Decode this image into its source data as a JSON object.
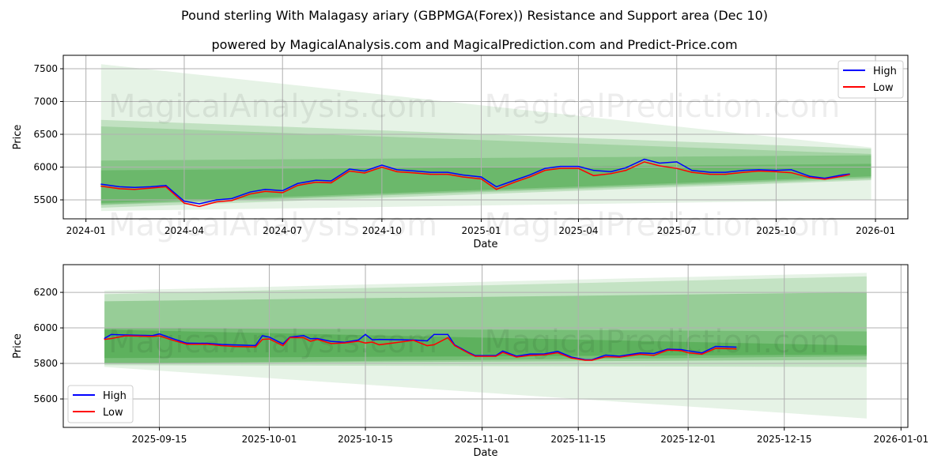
{
  "title": "Pound sterling With Malagasy ariary (GBPMGA(Forex)) Resistance and Support area (Dec 10)",
  "subtitle": "powered by MagicalAnalysis.com and MagicalPrediction.com and Predict-Price.com",
  "watermarks": [
    "MagicalAnalysis.com",
    "MagicalPrediction.com"
  ],
  "colors": {
    "high": "#0000ff",
    "low": "#ff0000",
    "band": "#2e9a2e"
  },
  "chart_data": [
    {
      "type": "line",
      "xlabel": "Date",
      "ylabel": "Price",
      "xlim": [
        "2023-12-11",
        "2026-01-31"
      ],
      "ylim": [
        5211,
        7705
      ],
      "grid": true,
      "legend": "top-right",
      "legend_entries": [
        "High",
        "Low"
      ],
      "xticks": [
        {
          "d": "2024-01-01",
          "label": "2024-01"
        },
        {
          "d": "2024-04-01",
          "label": "2024-04"
        },
        {
          "d": "2024-07-01",
          "label": "2024-07"
        },
        {
          "d": "2024-10-01",
          "label": "2024-10"
        },
        {
          "d": "2025-01-01",
          "label": "2025-01"
        },
        {
          "d": "2025-04-01",
          "label": "2025-04"
        },
        {
          "d": "2025-07-01",
          "label": "2025-07"
        },
        {
          "d": "2025-10-01",
          "label": "2025-10"
        },
        {
          "d": "2026-01-01",
          "label": "2026-01"
        }
      ],
      "yticks": [
        {
          "v": 5500,
          "label": "5500"
        },
        {
          "v": 6000,
          "label": "6000"
        },
        {
          "v": 6500,
          "label": "6500"
        },
        {
          "v": 7000,
          "label": "7000"
        },
        {
          "v": 7500,
          "label": "7500"
        }
      ],
      "bands": {
        "start": "2024-01-15",
        "end": "2025-12-28",
        "items": [
          {
            "s": [
              5330,
              7570
            ],
            "e": [
              5500,
              6300
            ],
            "o": 0.12
          },
          {
            "s": [
              5380,
              6720
            ],
            "e": [
              5800,
              6280
            ],
            "o": 0.2
          },
          {
            "s": [
              5420,
              6620
            ],
            "e": [
              5820,
              6200
            ],
            "o": 0.2
          },
          {
            "s": [
              5430,
              6100
            ],
            "e": [
              5840,
              6180
            ],
            "o": 0.25
          },
          {
            "s": [
              5450,
              5950
            ],
            "e": [
              5860,
              6050
            ],
            "o": 0.3
          }
        ]
      },
      "dates": [
        "2024-01-15",
        "2024-02-01",
        "2024-02-15",
        "2024-03-01",
        "2024-03-15",
        "2024-04-01",
        "2024-04-15",
        "2024-05-01",
        "2024-05-15",
        "2024-06-01",
        "2024-06-15",
        "2024-07-01",
        "2024-07-15",
        "2024-08-01",
        "2024-08-15",
        "2024-09-01",
        "2024-09-15",
        "2024-10-01",
        "2024-10-15",
        "2024-11-01",
        "2024-11-15",
        "2024-12-01",
        "2024-12-15",
        "2025-01-01",
        "2025-01-15",
        "2025-02-01",
        "2025-02-15",
        "2025-03-01",
        "2025-03-15",
        "2025-04-01",
        "2025-04-15",
        "2025-05-01",
        "2025-05-15",
        "2025-06-01",
        "2025-06-15",
        "2025-07-01",
        "2025-07-15",
        "2025-08-01",
        "2025-08-15",
        "2025-09-01",
        "2025-09-15",
        "2025-10-01",
        "2025-10-15",
        "2025-11-01",
        "2025-11-15",
        "2025-12-01",
        "2025-12-08"
      ],
      "series": [
        {
          "name": "High",
          "values": [
            5740,
            5700,
            5690,
            5700,
            5720,
            5480,
            5440,
            5500,
            5520,
            5620,
            5660,
            5640,
            5750,
            5800,
            5790,
            5970,
            5940,
            6030,
            5960,
            5940,
            5920,
            5920,
            5880,
            5850,
            5700,
            5800,
            5880,
            5980,
            6010,
            6010,
            5950,
            5930,
            5990,
            6120,
            6060,
            6080,
            5950,
            5920,
            5920,
            5950,
            5960,
            5950,
            5960,
            5860,
            5830,
            5880,
            5895
          ]
        },
        {
          "name": "Low",
          "values": [
            5710,
            5670,
            5660,
            5680,
            5700,
            5450,
            5400,
            5470,
            5490,
            5590,
            5630,
            5610,
            5720,
            5770,
            5760,
            5940,
            5910,
            6000,
            5930,
            5910,
            5890,
            5890,
            5850,
            5820,
            5660,
            5770,
            5850,
            5950,
            5980,
            5980,
            5870,
            5900,
            5950,
            6080,
            6020,
            5980,
            5920,
            5890,
            5890,
            5920,
            5940,
            5930,
            5915,
            5840,
            5815,
            5860,
            5885
          ]
        }
      ]
    },
    {
      "type": "line",
      "xlabel": "Date",
      "ylabel": "Price",
      "xlim": [
        "2025-09-01",
        "2026-01-02"
      ],
      "ylim": [
        5440,
        6356
      ],
      "grid": true,
      "legend": "bottom-left",
      "legend_entries": [
        "High",
        "Low"
      ],
      "xticks": [
        {
          "d": "2025-09-15",
          "label": "2025-09-15"
        },
        {
          "d": "2025-10-01",
          "label": "2025-10-01"
        },
        {
          "d": "2025-10-15",
          "label": "2025-10-15"
        },
        {
          "d": "2025-11-01",
          "label": "2025-11-01"
        },
        {
          "d": "2025-11-15",
          "label": "2025-11-15"
        },
        {
          "d": "2025-12-01",
          "label": "2025-12-01"
        },
        {
          "d": "2025-12-15",
          "label": "2025-12-15"
        },
        {
          "d": "2026-01-01",
          "label": "2026-01-01"
        }
      ],
      "yticks": [
        {
          "v": 5600,
          "label": "5600"
        },
        {
          "v": 5800,
          "label": "5800"
        },
        {
          "v": 6000,
          "label": "6000"
        },
        {
          "v": 6200,
          "label": "6200"
        }
      ],
      "bands": {
        "start": "2025-09-07",
        "end": "2025-12-27",
        "items": [
          {
            "s": [
              5780,
              6210
            ],
            "e": [
              5490,
              6310
            ],
            "o": 0.12
          },
          {
            "s": [
              5790,
              6190
            ],
            "e": [
              5780,
              6290
            ],
            "o": 0.18
          },
          {
            "s": [
              5800,
              6150
            ],
            "e": [
              5820,
              6200
            ],
            "o": 0.3
          },
          {
            "s": [
              5800,
              6000
            ],
            "e": [
              5840,
              5980
            ],
            "o": 0.3
          },
          {
            "s": [
              5830,
              5990
            ],
            "e": [
              5850,
              5900
            ],
            "o": 0.35
          }
        ]
      },
      "dates": [
        "2025-09-07",
        "2025-09-08",
        "2025-09-10",
        "2025-09-14",
        "2025-09-15",
        "2025-09-17",
        "2025-09-19",
        "2025-09-22",
        "2025-09-24",
        "2025-09-26",
        "2025-09-29",
        "2025-09-30",
        "2025-10-01",
        "2025-10-03",
        "2025-10-04",
        "2025-10-06",
        "2025-10-07",
        "2025-10-08",
        "2025-10-10",
        "2025-10-12",
        "2025-10-14",
        "2025-10-15",
        "2025-10-16",
        "2025-10-17",
        "2025-10-22",
        "2025-10-24",
        "2025-10-25",
        "2025-10-27",
        "2025-10-28",
        "2025-10-30",
        "2025-10-31",
        "2025-11-03",
        "2025-11-04",
        "2025-11-06",
        "2025-11-08",
        "2025-11-10",
        "2025-11-12",
        "2025-11-14",
        "2025-11-16",
        "2025-11-17",
        "2025-11-19",
        "2025-11-21",
        "2025-11-24",
        "2025-11-26",
        "2025-11-28",
        "2025-11-30",
        "2025-12-01",
        "2025-12-03",
        "2025-12-05",
        "2025-12-08"
      ],
      "series": [
        {
          "name": "High",
          "values": [
            5941,
            5963,
            5960,
            5957,
            5966,
            5939,
            5914,
            5913,
            5907,
            5904,
            5901,
            5956,
            5948,
            5910,
            5948,
            5957,
            5939,
            5940,
            5924,
            5919,
            5932,
            5963,
            5933,
            5935,
            5932,
            5927,
            5963,
            5963,
            5904,
            5862,
            5844,
            5844,
            5870,
            5841,
            5853,
            5853,
            5868,
            5836,
            5821,
            5821,
            5847,
            5841,
            5859,
            5856,
            5880,
            5878,
            5871,
            5859,
            5896,
            5892
          ]
        },
        {
          "name": "Low",
          "values": [
            5935,
            5940,
            5955,
            5952,
            5955,
            5930,
            5908,
            5908,
            5900,
            5895,
            5893,
            5935,
            5938,
            5900,
            5945,
            5945,
            5925,
            5935,
            5912,
            5915,
            5925,
            5915,
            5920,
            5905,
            5930,
            5900,
            5905,
            5945,
            5900,
            5858,
            5840,
            5840,
            5862,
            5836,
            5845,
            5848,
            5860,
            5830,
            5818,
            5818,
            5838,
            5835,
            5852,
            5845,
            5875,
            5872,
            5860,
            5852,
            5885,
            5882
          ]
        }
      ]
    }
  ]
}
